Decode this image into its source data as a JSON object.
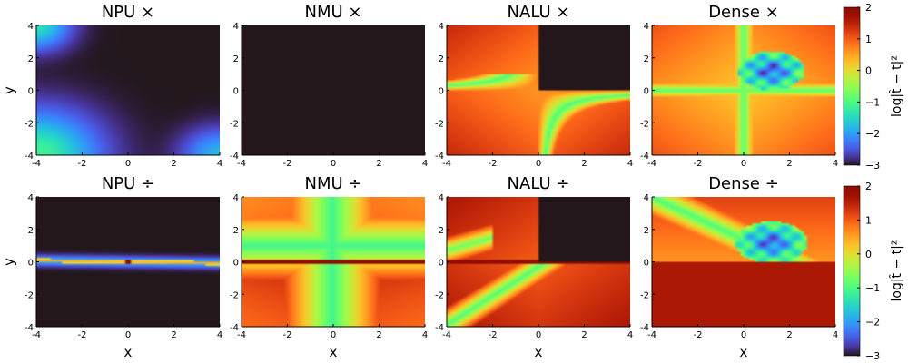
{
  "chart_data": {
    "type": "heatmap",
    "colormap": "turbo",
    "x_range": [
      -4,
      4
    ],
    "y_range": [
      -4,
      4
    ],
    "x_ticks": [
      -4,
      -2,
      0,
      2,
      4
    ],
    "y_ticks": [
      -4,
      -2,
      0,
      2,
      4
    ],
    "x_tick_labels": [
      "-4",
      "-2",
      "0",
      "2",
      "4"
    ],
    "y_tick_labels": [
      "-4",
      "-2",
      "0",
      "2",
      "4"
    ],
    "xlabel": "x",
    "ylabel": "y",
    "colorbar": {
      "range": [
        -3,
        2
      ],
      "ticks": [
        -3,
        -2,
        -1,
        0,
        1,
        2
      ],
      "tick_labels": [
        "−3",
        "−2",
        "−1",
        "0",
        "1",
        "2"
      ],
      "label": "log|t̂ − t|²"
    },
    "panels": [
      {
        "title": "NPU ×",
        "model": "npu",
        "op": "mul"
      },
      {
        "title": "NMU ×",
        "model": "nmu",
        "op": "mul"
      },
      {
        "title": "NALU ×",
        "model": "nalu",
        "op": "mul"
      },
      {
        "title": "Dense ×",
        "model": "dense",
        "op": "mul"
      },
      {
        "title": "NPU ÷",
        "model": "npu",
        "op": "div"
      },
      {
        "title": "NMU ÷",
        "model": "nmu",
        "op": "div"
      },
      {
        "title": "NALU ÷",
        "model": "nalu",
        "op": "div"
      },
      {
        "title": "Dense ÷",
        "model": "dense",
        "op": "div"
      }
    ]
  }
}
